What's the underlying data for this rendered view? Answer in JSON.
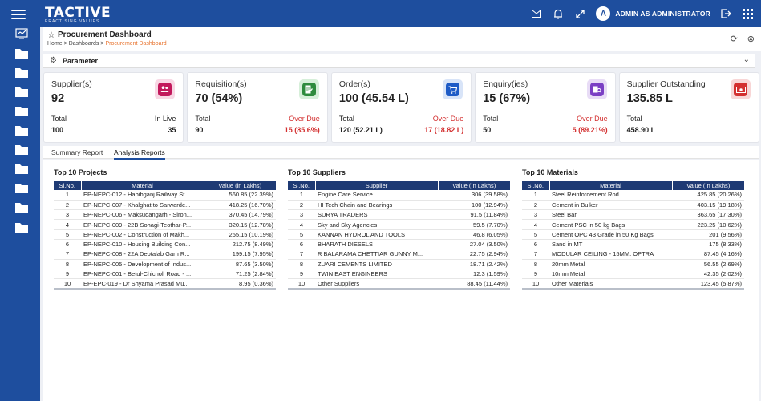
{
  "app": {
    "logo_text": "TACTIVE",
    "logo_tagline": "PRACTISING VALUES",
    "user_initial": "A",
    "user_name": "ADMIN AS ADMINISTRATOR"
  },
  "top_icons": [
    "mail-icon",
    "bell-icon",
    "expand-icon",
    "logout-icon",
    "apps-grid-icon"
  ],
  "sidebar": {
    "items": [
      "dashboard-icon",
      "folder-icon",
      "folder-icon",
      "folder-icon",
      "folder-icon",
      "folder-icon",
      "folder-icon",
      "folder-icon",
      "folder-icon",
      "folder-icon",
      "folder-icon"
    ]
  },
  "page": {
    "title": "Procurement Dashboard",
    "breadcrumb": [
      "Home",
      "Dashboards",
      "Procurement Dashboard"
    ],
    "separator": ">"
  },
  "parameter": {
    "label": "Parameter"
  },
  "cards": [
    {
      "title": "Supplier(s)",
      "value": "92",
      "icon": "users-icon",
      "color": "#c2185b",
      "bg": "#f8d7e4",
      "left_label": "Total",
      "left_value": "100",
      "right_label": "In Live",
      "right_value": "35",
      "right_red": false
    },
    {
      "title": "Requisition(s)",
      "value": "70 (54%)",
      "icon": "document-edit-icon",
      "color": "#2e8b3d",
      "bg": "#d6efd9",
      "left_label": "Total",
      "left_value": "90",
      "right_label": "Over Due",
      "right_value": "15 (85.6%)",
      "right_red": true
    },
    {
      "title": "Order(s)",
      "value": "100 (45.54 L)",
      "icon": "cart-icon",
      "color": "#1e5bc6",
      "bg": "#d8e4f8",
      "left_label": "Total",
      "left_value": "120 (52.21 L)",
      "right_label": "Over Due",
      "right_value": "17 (18.82 L)",
      "right_red": true
    },
    {
      "title": "Enquiry(ies)",
      "value": "15 (67%)",
      "icon": "enquiry-icon",
      "color": "#7b3fc4",
      "bg": "#e8dcf6",
      "left_label": "Total",
      "left_value": "50",
      "right_label": "Over Due",
      "right_value": "5 (89.21%)",
      "right_red": true
    },
    {
      "title": "Supplier Outstanding",
      "value": "135.85 L",
      "icon": "money-icon",
      "color": "#d32f2f",
      "bg": "#f8d6d6",
      "left_label": "Total",
      "left_value": "458.90 L",
      "right_label": "",
      "right_value": "",
      "right_red": false
    }
  ],
  "tabs": [
    "Summary Report",
    "Analysis Reports"
  ],
  "active_tab": 1,
  "reports": [
    {
      "title": "Top 10 Projects",
      "columns": [
        "Sl.No.",
        "Material",
        "Value (in Lakhs)"
      ],
      "rows": [
        [
          "1",
          "EP-NEPC-012 - Habibganj Railway St...",
          "560.85 (22.39%)"
        ],
        [
          "2",
          "EP-NEPC-007 - Khalghat to Sarwarde...",
          "418.25 (16.70%)"
        ],
        [
          "3",
          "EP-NEPC-006 - Maksudangarh - Siron...",
          "370.45 (14.79%)"
        ],
        [
          "4",
          "EP-NEPC-009 - 22B Sohagi-Teothar-P...",
          "320.15 (12.78%)"
        ],
        [
          "5",
          "EP-NEPC-002 - Construction of Makh...",
          "255.15 (10.19%)"
        ],
        [
          "6",
          "EP-NEPC-010 - Housing Building Con...",
          "212.75 (8.49%)"
        ],
        [
          "7",
          "EP-NEPC-008 - 22A Deotalab Garh R...",
          "199.15 (7.95%)"
        ],
        [
          "8",
          "EP-NEPC-005 - Development of Indus...",
          "87.65 (3.50%)"
        ],
        [
          "9",
          "EP-NEPC-001 - Betul-Chicholi Road - ...",
          "71.25 (2.84%)"
        ],
        [
          "10",
          "EP-EPC-019 - Dr Shyama Prasad Mu...",
          "8.95 (0.36%)"
        ]
      ]
    },
    {
      "title": "Top 10 Suppliers",
      "columns": [
        "Sl.No.",
        "Supplier",
        "Value (In Lakhs)"
      ],
      "rows": [
        [
          "1",
          "Engine Care Service",
          "306 (39.58%)"
        ],
        [
          "2",
          "HI Tech Chain and Bearings",
          "100 (12.94%)"
        ],
        [
          "3",
          "SURYA TRADERS",
          "91.5 (11.84%)"
        ],
        [
          "4",
          "Sky and Sky Agencies",
          "59.5 (7.70%)"
        ],
        [
          "5",
          "KANNAN HYDROL AND TOOLS",
          "46.8 (6.05%)"
        ],
        [
          "6",
          "BHARATH DIESELS",
          "27.04 (3.50%)"
        ],
        [
          "7",
          "R BALARAMA CHETTIAR GUNNY M...",
          "22.75 (2.94%)"
        ],
        [
          "8",
          "ZUARI CEMENTS LIMITED",
          "18.71 (2.42%)"
        ],
        [
          "9",
          "TWIN EAST ENGINEERS",
          "12.3 (1.59%)"
        ],
        [
          "10",
          "Other Suppliers",
          "88.45 (11.44%)"
        ]
      ]
    },
    {
      "title": "Top 10 Materials",
      "columns": [
        "Sl.No.",
        "Material",
        "Value (In Lakhs)"
      ],
      "rows": [
        [
          "1",
          "Steel Reinforcement Rod.",
          "425.85 (20.26%)"
        ],
        [
          "2",
          "Cement in Bulker",
          "403.15 (19.18%)"
        ],
        [
          "3",
          "Steel Bar",
          "363.65 (17.30%)"
        ],
        [
          "4",
          "Cement PSC in 50 kg Bags",
          "223.25 (10.62%)"
        ],
        [
          "5",
          "Cement OPC 43 Grade in 50 Kg Bags",
          "201 (9.56%)"
        ],
        [
          "6",
          "Sand in MT",
          "175 (8.33%)"
        ],
        [
          "7",
          "MODULAR CEILING - 15MM. OPTRA",
          "87.45 (4.16%)"
        ],
        [
          "8",
          "20mm Metal",
          "56.55 (2.69%)"
        ],
        [
          "9",
          "10mm Metal",
          "42.35 (2.02%)"
        ],
        [
          "10",
          "Other Materials",
          "123.45 (5.87%)"
        ]
      ]
    }
  ]
}
